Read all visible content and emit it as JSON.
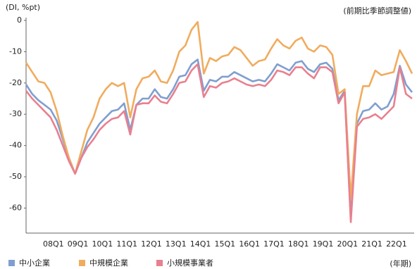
{
  "chart_data": {
    "type": "line",
    "y_label": "(DI, %pt)",
    "note": "(前期比季節調整値)",
    "x_label": "(年期)",
    "categories": [
      null,
      null,
      null,
      null,
      "08Q1",
      null,
      null,
      null,
      "09Q1",
      null,
      null,
      null,
      "10Q1",
      null,
      null,
      null,
      "11Q1",
      null,
      null,
      null,
      "12Q1",
      null,
      null,
      null,
      "13Q1",
      null,
      null,
      null,
      "14Q1",
      null,
      null,
      null,
      "15Q1",
      null,
      null,
      null,
      "16Q1",
      null,
      null,
      null,
      "17Q1",
      null,
      null,
      null,
      "18Q1",
      null,
      null,
      null,
      "19Q1",
      null,
      null,
      null,
      "20Q1",
      null,
      null,
      null,
      "21Q1",
      null,
      null,
      null,
      "22Q1",
      null,
      null,
      null
    ],
    "series": [
      {
        "name": "中小企業",
        "color": "#7f9fcf",
        "values": [
          -20.5,
          -23.5,
          -25.5,
          -27,
          -28.5,
          -32,
          -38,
          -44,
          -49,
          -44,
          -39,
          -36,
          -33,
          -31,
          -29,
          -28.5,
          -26.5,
          -35,
          -27,
          -25,
          -25,
          -22,
          -24.5,
          -25,
          -22,
          -18,
          -17.5,
          -14,
          -12.5,
          -22.5,
          -19,
          -19.5,
          -18,
          -18,
          -16.5,
          -17.5,
          -18.5,
          -19.5,
          -19,
          -19.5,
          -17,
          -14,
          -15,
          -16,
          -13.5,
          -13,
          -15.5,
          -16.5,
          -14,
          -13.5,
          -15.5,
          -25.5,
          -22.5,
          -63,
          -33,
          -29,
          -28.5,
          -26.5,
          -28.5,
          -27.5,
          -23.5,
          -14.5,
          -20.5,
          -23
        ]
      },
      {
        "name": "中規模企業",
        "color": "#f0ac5e",
        "values": [
          -13.5,
          -16.5,
          -19.5,
          -20,
          -23,
          -29,
          -37,
          -44,
          -49,
          -42,
          -35,
          -31,
          -25,
          -22,
          -20,
          -21,
          -20,
          -31,
          -22,
          -18.5,
          -18,
          -16,
          -19.5,
          -20,
          -16,
          -10,
          -8,
          -3,
          -0.5,
          -17,
          -12,
          -13,
          -11.5,
          -11,
          -8.5,
          -9.5,
          -12,
          -14.5,
          -13,
          -12.5,
          -9,
          -6,
          -8,
          -9,
          -6.5,
          -5.5,
          -9,
          -10,
          -8,
          -8.5,
          -11,
          -23.5,
          -22,
          -57,
          -30,
          -21,
          -21,
          -16,
          -17.5,
          -17,
          -16.5,
          -9.5,
          -13,
          -17
        ]
      },
      {
        "name": "小規模事業者",
        "color": "#e8808f",
        "values": [
          -22.5,
          -25,
          -27,
          -29,
          -31,
          -35,
          -40,
          -45,
          -49,
          -44,
          -40.5,
          -38,
          -35,
          -33,
          -31.5,
          -31,
          -29,
          -36.5,
          -27,
          -26.5,
          -26.5,
          -24,
          -26,
          -26.5,
          -23.5,
          -20,
          -19.5,
          -16,
          -14,
          -24.5,
          -21,
          -21.5,
          -20,
          -19.5,
          -18.5,
          -19.5,
          -20.5,
          -21,
          -20.5,
          -21,
          -19,
          -16,
          -16.5,
          -17.5,
          -15,
          -15,
          -17,
          -18.5,
          -15,
          -15,
          -16.5,
          -26.5,
          -23,
          -64.5,
          -34,
          -31.5,
          -31,
          -30,
          -31.5,
          -29.5,
          -27.5,
          -15,
          -23.5,
          -25
        ]
      }
    ],
    "ylim": [
      -68,
      0
    ],
    "yticks": [
      0,
      -10,
      -20,
      -30,
      -40,
      -50,
      -60
    ]
  }
}
